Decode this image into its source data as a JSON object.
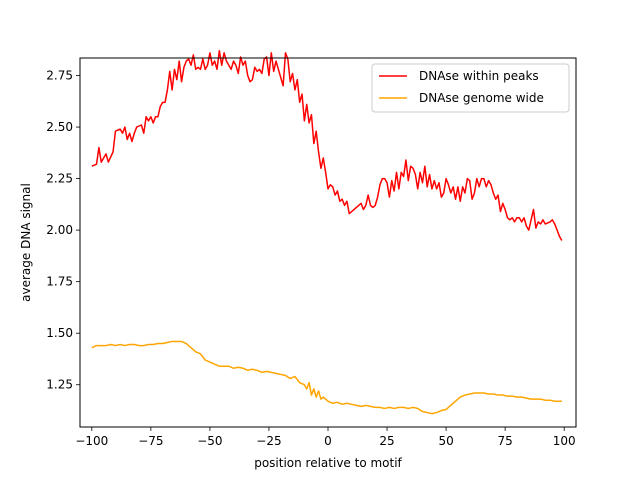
{
  "chart_data": {
    "type": "line",
    "xlabel": "position relative to motif",
    "ylabel": "average DNA signal",
    "xlim": [
      -105,
      105
    ],
    "ylim": [
      1.045,
      2.835
    ],
    "xticks": [
      -100,
      -75,
      -50,
      -25,
      0,
      25,
      50,
      75,
      100
    ],
    "xtick_labels": [
      "−100",
      "−75",
      "−50",
      "−25",
      "0",
      "25",
      "50",
      "75",
      "100"
    ],
    "yticks": [
      1.25,
      1.5,
      1.75,
      2.0,
      2.25,
      2.5,
      2.75
    ],
    "ytick_labels": [
      "1.25",
      "1.50",
      "1.75",
      "2.00",
      "2.25",
      "2.50",
      "2.75"
    ],
    "grid": false,
    "legend_position": "top-right",
    "series": [
      {
        "name": "DNAse within peaks",
        "color": "#ff0000",
        "points": [
          [
            -100,
            2.31
          ],
          [
            -98,
            2.32
          ],
          [
            -97,
            2.4
          ],
          [
            -96,
            2.33
          ],
          [
            -94,
            2.37
          ],
          [
            -93,
            2.33
          ],
          [
            -91,
            2.38
          ],
          [
            -90,
            2.48
          ],
          [
            -88,
            2.49
          ],
          [
            -87,
            2.47
          ],
          [
            -86,
            2.5
          ],
          [
            -85,
            2.44
          ],
          [
            -84,
            2.47
          ],
          [
            -83,
            2.43
          ],
          [
            -82,
            2.47
          ],
          [
            -81,
            2.5
          ],
          [
            -79,
            2.51
          ],
          [
            -78,
            2.47
          ],
          [
            -77,
            2.55
          ],
          [
            -76,
            2.53
          ],
          [
            -75,
            2.55
          ],
          [
            -74,
            2.52
          ],
          [
            -73,
            2.55
          ],
          [
            -72,
            2.55
          ],
          [
            -71,
            2.6
          ],
          [
            -70,
            2.62
          ],
          [
            -69,
            2.62
          ],
          [
            -68,
            2.68
          ],
          [
            -67,
            2.77
          ],
          [
            -66,
            2.68
          ],
          [
            -65,
            2.78
          ],
          [
            -64,
            2.73
          ],
          [
            -63,
            2.82
          ],
          [
            -62,
            2.72
          ],
          [
            -61,
            2.79
          ],
          [
            -60,
            2.82
          ],
          [
            -59,
            2.83
          ],
          [
            -58,
            2.8
          ],
          [
            -57,
            2.85
          ],
          [
            -56,
            2.78
          ],
          [
            -55,
            2.79
          ],
          [
            -54,
            2.78
          ],
          [
            -53,
            2.83
          ],
          [
            -52,
            2.78
          ],
          [
            -51,
            2.8
          ],
          [
            -50,
            2.86
          ],
          [
            -49,
            2.8
          ],
          [
            -48,
            2.82
          ],
          [
            -47,
            2.78
          ],
          [
            -46,
            2.87
          ],
          [
            -45,
            2.8
          ],
          [
            -44,
            2.86
          ],
          [
            -43,
            2.82
          ],
          [
            -42,
            2.8
          ],
          [
            -41,
            2.78
          ],
          [
            -40,
            2.82
          ],
          [
            -39,
            2.8
          ],
          [
            -38,
            2.76
          ],
          [
            -37,
            2.84
          ],
          [
            -36,
            2.8
          ],
          [
            -35,
            2.82
          ],
          [
            -34,
            2.75
          ],
          [
            -33,
            2.72
          ],
          [
            -32,
            2.73
          ],
          [
            -31,
            2.79
          ],
          [
            -30,
            2.77
          ],
          [
            -29,
            2.78
          ],
          [
            -28,
            2.76
          ],
          [
            -27,
            2.83
          ],
          [
            -26,
            2.84
          ],
          [
            -25,
            2.75
          ],
          [
            -24,
            2.86
          ],
          [
            -23,
            2.77
          ],
          [
            -22,
            2.82
          ],
          [
            -21,
            2.78
          ],
          [
            -20,
            2.74
          ],
          [
            -19,
            2.7
          ],
          [
            -18,
            2.86
          ],
          [
            -17,
            2.83
          ],
          [
            -16,
            2.72
          ],
          [
            -15,
            2.76
          ],
          [
            -14,
            2.68
          ],
          [
            -13,
            2.73
          ],
          [
            -12,
            2.62
          ],
          [
            -11,
            2.66
          ],
          [
            -10,
            2.53
          ],
          [
            -9,
            2.61
          ],
          [
            -8,
            2.52
          ],
          [
            -7,
            2.56
          ],
          [
            -6,
            2.42
          ],
          [
            -5,
            2.48
          ],
          [
            -4,
            2.38
          ],
          [
            -3,
            2.3
          ],
          [
            -2,
            2.35
          ],
          [
            -1,
            2.28
          ],
          [
            0,
            2.2
          ],
          [
            1,
            2.22
          ],
          [
            2,
            2.21
          ],
          [
            3,
            2.17
          ],
          [
            4,
            2.19
          ],
          [
            5,
            2.14
          ],
          [
            6,
            2.15
          ],
          [
            7,
            2.12
          ],
          [
            8,
            2.14
          ],
          [
            9,
            2.08
          ],
          [
            10,
            2.09
          ],
          [
            11,
            2.1
          ],
          [
            12,
            2.11
          ],
          [
            13,
            2.12
          ],
          [
            14,
            2.13
          ],
          [
            15,
            2.1
          ],
          [
            16,
            2.12
          ],
          [
            17,
            2.17
          ],
          [
            18,
            2.12
          ],
          [
            19,
            2.11
          ],
          [
            20,
            2.12
          ],
          [
            21,
            2.16
          ],
          [
            22,
            2.22
          ],
          [
            23,
            2.25
          ],
          [
            24,
            2.25
          ],
          [
            25,
            2.23
          ],
          [
            26,
            2.16
          ],
          [
            27,
            2.24
          ],
          [
            28,
            2.19
          ],
          [
            29,
            2.28
          ],
          [
            30,
            2.2
          ],
          [
            31,
            2.28
          ],
          [
            32,
            2.26
          ],
          [
            33,
            2.34
          ],
          [
            34,
            2.24
          ],
          [
            35,
            2.31
          ],
          [
            36,
            2.3
          ],
          [
            37,
            2.27
          ],
          [
            38,
            2.2
          ],
          [
            39,
            2.28
          ],
          [
            40,
            2.23
          ],
          [
            41,
            2.31
          ],
          [
            42,
            2.21
          ],
          [
            43,
            2.27
          ],
          [
            44,
            2.2
          ],
          [
            45,
            2.24
          ],
          [
            46,
            2.2
          ],
          [
            47,
            2.23
          ],
          [
            48,
            2.16
          ],
          [
            49,
            2.18
          ],
          [
            50,
            2.25
          ],
          [
            51,
            2.22
          ],
          [
            52,
            2.18
          ],
          [
            53,
            2.21
          ],
          [
            54,
            2.15
          ],
          [
            55,
            2.21
          ],
          [
            56,
            2.14
          ],
          [
            57,
            2.21
          ],
          [
            58,
            2.18
          ],
          [
            59,
            2.25
          ],
          [
            60,
            2.24
          ],
          [
            61,
            2.15
          ],
          [
            62,
            2.18
          ],
          [
            63,
            2.25
          ],
          [
            64,
            2.21
          ],
          [
            65,
            2.25
          ],
          [
            66,
            2.25
          ],
          [
            67,
            2.21
          ],
          [
            68,
            2.24
          ],
          [
            69,
            2.22
          ],
          [
            70,
            2.18
          ],
          [
            71,
            2.15
          ],
          [
            72,
            2.17
          ],
          [
            73,
            2.09
          ],
          [
            74,
            2.13
          ],
          [
            75,
            2.1
          ],
          [
            76,
            2.06
          ],
          [
            77,
            2.05
          ],
          [
            78,
            2.06
          ],
          [
            79,
            2.04
          ],
          [
            80,
            2.06
          ],
          [
            81,
            2.06
          ],
          [
            82,
            2.04
          ],
          [
            83,
            2.06
          ],
          [
            84,
            2.02
          ],
          [
            85,
            2.0
          ],
          [
            86,
            2.05
          ],
          [
            87,
            2.1
          ],
          [
            88,
            2.01
          ],
          [
            89,
            2.04
          ],
          [
            90,
            2.03
          ],
          [
            91,
            2.05
          ],
          [
            92,
            2.03
          ],
          [
            94,
            2.04
          ],
          [
            95,
            2.05
          ],
          [
            96,
            2.03
          ],
          [
            97,
            2.0
          ],
          [
            98,
            1.97
          ],
          [
            99,
            1.95
          ]
        ]
      },
      {
        "name": "DNAse genome wide",
        "color": "#ffa500",
        "points": [
          [
            -100,
            1.43
          ],
          [
            -98,
            1.44
          ],
          [
            -96,
            1.44
          ],
          [
            -94,
            1.44
          ],
          [
            -92,
            1.445
          ],
          [
            -90,
            1.44
          ],
          [
            -88,
            1.445
          ],
          [
            -86,
            1.44
          ],
          [
            -84,
            1.445
          ],
          [
            -82,
            1.445
          ],
          [
            -80,
            1.44
          ],
          [
            -78,
            1.44
          ],
          [
            -76,
            1.445
          ],
          [
            -74,
            1.445
          ],
          [
            -72,
            1.45
          ],
          [
            -70,
            1.45
          ],
          [
            -68,
            1.455
          ],
          [
            -66,
            1.46
          ],
          [
            -64,
            1.46
          ],
          [
            -62,
            1.46
          ],
          [
            -60,
            1.45
          ],
          [
            -58,
            1.43
          ],
          [
            -56,
            1.41
          ],
          [
            -54,
            1.4
          ],
          [
            -52,
            1.37
          ],
          [
            -50,
            1.36
          ],
          [
            -48,
            1.35
          ],
          [
            -46,
            1.34
          ],
          [
            -44,
            1.34
          ],
          [
            -42,
            1.34
          ],
          [
            -40,
            1.33
          ],
          [
            -38,
            1.335
          ],
          [
            -36,
            1.33
          ],
          [
            -34,
            1.32
          ],
          [
            -32,
            1.325
          ],
          [
            -30,
            1.32
          ],
          [
            -28,
            1.31
          ],
          [
            -26,
            1.315
          ],
          [
            -24,
            1.31
          ],
          [
            -22,
            1.305
          ],
          [
            -20,
            1.3
          ],
          [
            -18,
            1.295
          ],
          [
            -16,
            1.28
          ],
          [
            -14,
            1.29
          ],
          [
            -12,
            1.26
          ],
          [
            -10,
            1.25
          ],
          [
            -9,
            1.23
          ],
          [
            -8,
            1.26
          ],
          [
            -7,
            1.2
          ],
          [
            -6,
            1.23
          ],
          [
            -5,
            1.19
          ],
          [
            -4,
            1.22
          ],
          [
            -3,
            1.18
          ],
          [
            -2,
            1.19
          ],
          [
            0,
            1.17
          ],
          [
            2,
            1.16
          ],
          [
            4,
            1.165
          ],
          [
            6,
            1.155
          ],
          [
            8,
            1.16
          ],
          [
            10,
            1.155
          ],
          [
            12,
            1.15
          ],
          [
            14,
            1.145
          ],
          [
            16,
            1.15
          ],
          [
            18,
            1.145
          ],
          [
            20,
            1.14
          ],
          [
            22,
            1.14
          ],
          [
            24,
            1.135
          ],
          [
            26,
            1.14
          ],
          [
            28,
            1.135
          ],
          [
            30,
            1.14
          ],
          [
            32,
            1.14
          ],
          [
            34,
            1.135
          ],
          [
            36,
            1.14
          ],
          [
            38,
            1.135
          ],
          [
            40,
            1.12
          ],
          [
            42,
            1.115
          ],
          [
            44,
            1.11
          ],
          [
            46,
            1.115
          ],
          [
            48,
            1.125
          ],
          [
            50,
            1.13
          ],
          [
            52,
            1.15
          ],
          [
            54,
            1.17
          ],
          [
            56,
            1.19
          ],
          [
            58,
            1.2
          ],
          [
            60,
            1.205
          ],
          [
            62,
            1.21
          ],
          [
            64,
            1.21
          ],
          [
            66,
            1.21
          ],
          [
            68,
            1.205
          ],
          [
            70,
            1.205
          ],
          [
            72,
            1.2
          ],
          [
            74,
            1.2
          ],
          [
            76,
            1.195
          ],
          [
            78,
            1.195
          ],
          [
            80,
            1.19
          ],
          [
            82,
            1.19
          ],
          [
            84,
            1.185
          ],
          [
            86,
            1.18
          ],
          [
            88,
            1.18
          ],
          [
            90,
            1.18
          ],
          [
            92,
            1.175
          ],
          [
            94,
            1.175
          ],
          [
            96,
            1.17
          ],
          [
            98,
            1.17
          ],
          [
            99,
            1.17
          ]
        ]
      }
    ]
  }
}
